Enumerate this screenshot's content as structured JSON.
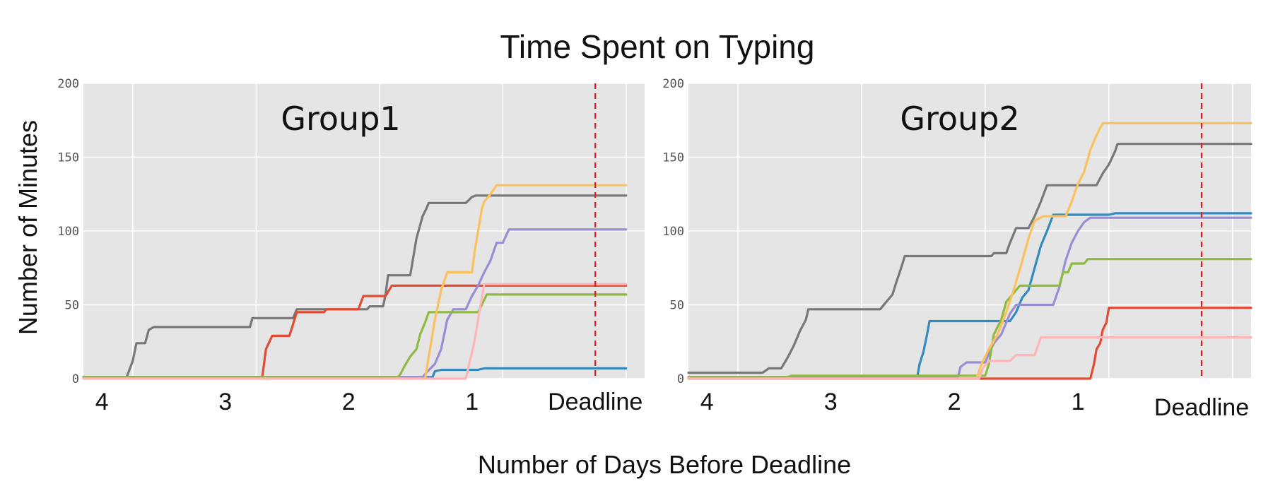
{
  "figure": {
    "title": "Time Spent on Typing",
    "xlabel": "Number of Days Before Deadline",
    "ylabel": "Number of Minutes"
  },
  "colors": {
    "panel_bg": "#e5e5e5",
    "grid": "#ffffff",
    "deadline_line": "#e31a1c",
    "gray": "#777777",
    "red": "#e24a33",
    "blue": "#348abd",
    "purple": "#988ed5",
    "green": "#8eba42",
    "yellow": "#fbc15e",
    "pink": "#ffb5b8"
  },
  "chart_data": [
    {
      "type": "line",
      "panel_label": "Group1",
      "xlabel": "Number of Days Before Deadline",
      "ylabel": "Number of Minutes",
      "x_unit": "days before deadline",
      "xlim": [
        4.15,
        -0.4
      ],
      "ylim": [
        0,
        200
      ],
      "yticks": [
        0,
        50,
        100,
        150,
        200
      ],
      "xtick_labels": [
        {
          "x": 4,
          "label": "4"
        },
        {
          "x": 3,
          "label": "3"
        },
        {
          "x": 2,
          "label": "2"
        },
        {
          "x": 1,
          "label": "1"
        },
        {
          "x": 0,
          "label": "Deadline"
        }
      ],
      "deadline_x": 0,
      "grid": true,
      "series": [
        {
          "color": "gray",
          "points": [
            [
              4.15,
              1
            ],
            [
              3.8,
              1
            ],
            [
              3.75,
              12
            ],
            [
              3.72,
              24
            ],
            [
              3.65,
              24
            ],
            [
              3.62,
              33
            ],
            [
              3.58,
              35
            ],
            [
              2.8,
              35
            ],
            [
              2.78,
              41
            ],
            [
              2.45,
              41
            ],
            [
              2.42,
              47
            ],
            [
              1.85,
              47
            ],
            [
              1.83,
              49
            ],
            [
              1.72,
              49
            ],
            [
              1.7,
              57
            ],
            [
              1.68,
              70
            ],
            [
              1.5,
              70
            ],
            [
              1.45,
              95
            ],
            [
              1.4,
              110
            ],
            [
              1.37,
              115
            ],
            [
              1.35,
              119
            ],
            [
              1.05,
              119
            ],
            [
              1.0,
              123
            ],
            [
              0.97,
              124
            ],
            [
              -0.25,
              124
            ]
          ]
        },
        {
          "color": "red",
          "points": [
            [
              4.15,
              1
            ],
            [
              2.7,
              1
            ],
            [
              2.67,
              20
            ],
            [
              2.62,
              29
            ],
            [
              2.48,
              29
            ],
            [
              2.45,
              37
            ],
            [
              2.42,
              45
            ],
            [
              2.2,
              45
            ],
            [
              2.18,
              47
            ],
            [
              1.92,
              47
            ],
            [
              1.88,
              56
            ],
            [
              1.7,
              56
            ],
            [
              1.65,
              63
            ],
            [
              -0.25,
              63
            ]
          ]
        },
        {
          "color": "blue",
          "points": [
            [
              4.15,
              1
            ],
            [
              1.32,
              1
            ],
            [
              1.3,
              5
            ],
            [
              1.25,
              6
            ],
            [
              0.95,
              6
            ],
            [
              0.9,
              7
            ],
            [
              -0.25,
              7
            ]
          ]
        },
        {
          "color": "purple",
          "points": [
            [
              4.15,
              1
            ],
            [
              1.4,
              1
            ],
            [
              1.37,
              4
            ],
            [
              1.3,
              10
            ],
            [
              1.25,
              20
            ],
            [
              1.2,
              40
            ],
            [
              1.15,
              47
            ],
            [
              1.05,
              47
            ],
            [
              1.0,
              56
            ],
            [
              0.95,
              63
            ],
            [
              0.9,
              72
            ],
            [
              0.85,
              80
            ],
            [
              0.8,
              92
            ],
            [
              0.75,
              92
            ],
            [
              0.7,
              101
            ],
            [
              -0.25,
              101
            ]
          ]
        },
        {
          "color": "green",
          "points": [
            [
              4.15,
              1
            ],
            [
              1.6,
              1
            ],
            [
              1.58,
              3
            ],
            [
              1.55,
              8
            ],
            [
              1.5,
              15
            ],
            [
              1.45,
              20
            ],
            [
              1.42,
              30
            ],
            [
              1.38,
              38
            ],
            [
              1.35,
              45
            ],
            [
              0.95,
              45
            ],
            [
              0.92,
              50
            ],
            [
              0.88,
              57
            ],
            [
              -0.25,
              57
            ]
          ]
        },
        {
          "color": "yellow",
          "points": [
            [
              4.15,
              0
            ],
            [
              1.38,
              0
            ],
            [
              1.35,
              15
            ],
            [
              1.3,
              40
            ],
            [
              1.25,
              60
            ],
            [
              1.2,
              72
            ],
            [
              1.0,
              72
            ],
            [
              0.98,
              85
            ],
            [
              0.95,
              100
            ],
            [
              0.92,
              115
            ],
            [
              0.9,
              120
            ],
            [
              0.85,
              125
            ],
            [
              0.8,
              131
            ],
            [
              -0.25,
              131
            ]
          ]
        },
        {
          "color": "pink",
          "points": [
            [
              4.15,
              0
            ],
            [
              1.05,
              0
            ],
            [
              0.98,
              25
            ],
            [
              0.93,
              50
            ],
            [
              0.9,
              64
            ],
            [
              -0.25,
              64
            ]
          ]
        }
      ]
    },
    {
      "type": "line",
      "panel_label": "Group2",
      "xlabel": "Number of Days Before Deadline",
      "ylabel": "Number of Minutes",
      "x_unit": "days before deadline",
      "xlim": [
        4.15,
        -0.4
      ],
      "ylim": [
        0,
        200
      ],
      "yticks": [
        0,
        50,
        100,
        150,
        200
      ],
      "xtick_labels": [
        {
          "x": 4,
          "label": "4"
        },
        {
          "x": 3,
          "label": "3"
        },
        {
          "x": 2,
          "label": "2"
        },
        {
          "x": 1,
          "label": "1"
        },
        {
          "x": 0,
          "label": "Deadline"
        }
      ],
      "deadline_x": 0,
      "grid": true,
      "series": [
        {
          "color": "gray",
          "points": [
            [
              4.15,
              4
            ],
            [
              3.55,
              4
            ],
            [
              3.5,
              7
            ],
            [
              3.4,
              7
            ],
            [
              3.35,
              14
            ],
            [
              3.3,
              22
            ],
            [
              3.25,
              32
            ],
            [
              3.2,
              40
            ],
            [
              3.18,
              47
            ],
            [
              2.6,
              47
            ],
            [
              2.55,
              52
            ],
            [
              2.5,
              57
            ],
            [
              2.47,
              65
            ],
            [
              2.43,
              75
            ],
            [
              2.4,
              83
            ],
            [
              1.7,
              83
            ],
            [
              1.68,
              85
            ],
            [
              1.58,
              85
            ],
            [
              1.55,
              92
            ],
            [
              1.5,
              102
            ],
            [
              1.4,
              102
            ],
            [
              1.35,
              110
            ],
            [
              1.3,
              120
            ],
            [
              1.25,
              131
            ],
            [
              0.85,
              131
            ],
            [
              0.8,
              139
            ],
            [
              0.75,
              145
            ],
            [
              0.7,
              154
            ],
            [
              0.68,
              159
            ],
            [
              -0.4,
              159
            ]
          ]
        },
        {
          "color": "red",
          "points": [
            [
              4.15,
              0
            ],
            [
              0.9,
              0
            ],
            [
              0.87,
              10
            ],
            [
              0.85,
              20
            ],
            [
              0.82,
              24
            ],
            [
              0.8,
              33
            ],
            [
              0.77,
              38
            ],
            [
              0.75,
              48
            ],
            [
              -0.4,
              48
            ]
          ]
        },
        {
          "color": "blue",
          "points": [
            [
              4.15,
              1
            ],
            [
              2.3,
              1
            ],
            [
              2.28,
              10
            ],
            [
              2.25,
              18
            ],
            [
              2.22,
              30
            ],
            [
              2.2,
              39
            ],
            [
              1.55,
              39
            ],
            [
              1.5,
              45
            ],
            [
              1.45,
              55
            ],
            [
              1.4,
              60
            ],
            [
              1.35,
              75
            ],
            [
              1.3,
              90
            ],
            [
              1.25,
              100
            ],
            [
              1.2,
              111
            ],
            [
              0.75,
              111
            ],
            [
              0.7,
              112
            ],
            [
              -0.4,
              112
            ]
          ]
        },
        {
          "color": "purple",
          "points": [
            [
              4.15,
              1
            ],
            [
              1.97,
              1
            ],
            [
              1.95,
              8
            ],
            [
              1.9,
              11
            ],
            [
              1.75,
              11
            ],
            [
              1.72,
              17
            ],
            [
              1.68,
              24
            ],
            [
              1.62,
              30
            ],
            [
              1.58,
              38
            ],
            [
              1.55,
              44
            ],
            [
              1.5,
              50
            ],
            [
              1.2,
              50
            ],
            [
              1.15,
              62
            ],
            [
              1.1,
              80
            ],
            [
              1.05,
              92
            ],
            [
              1.0,
              100
            ],
            [
              0.95,
              106
            ],
            [
              0.9,
              109
            ],
            [
              -0.4,
              109
            ]
          ]
        },
        {
          "color": "green",
          "points": [
            [
              4.15,
              1
            ],
            [
              3.35,
              1
            ],
            [
              3.32,
              2
            ],
            [
              1.75,
              2
            ],
            [
              1.72,
              10
            ],
            [
              1.68,
              30
            ],
            [
              1.62,
              40
            ],
            [
              1.58,
              52
            ],
            [
              1.55,
              55
            ],
            [
              1.5,
              60
            ],
            [
              1.47,
              63
            ],
            [
              1.15,
              63
            ],
            [
              1.12,
              72
            ],
            [
              1.08,
              72
            ],
            [
              1.05,
              78
            ],
            [
              0.95,
              78
            ],
            [
              0.92,
              81
            ],
            [
              -0.4,
              81
            ]
          ]
        },
        {
          "color": "yellow",
          "points": [
            [
              4.15,
              0
            ],
            [
              1.82,
              0
            ],
            [
              1.78,
              10
            ],
            [
              1.72,
              20
            ],
            [
              1.65,
              30
            ],
            [
              1.58,
              45
            ],
            [
              1.52,
              60
            ],
            [
              1.45,
              80
            ],
            [
              1.4,
              95
            ],
            [
              1.35,
              107
            ],
            [
              1.28,
              110
            ],
            [
              1.1,
              110
            ],
            [
              1.05,
              120
            ],
            [
              1.0,
              132
            ],
            [
              0.95,
              140
            ],
            [
              0.9,
              155
            ],
            [
              0.85,
              165
            ],
            [
              0.8,
              173
            ],
            [
              -0.4,
              173
            ]
          ]
        },
        {
          "color": "pink",
          "points": [
            [
              4.15,
              0
            ],
            [
              1.8,
              0
            ],
            [
              1.77,
              7
            ],
            [
              1.72,
              12
            ],
            [
              1.55,
              12
            ],
            [
              1.5,
              16
            ],
            [
              1.35,
              16
            ],
            [
              1.3,
              28
            ],
            [
              -0.4,
              28
            ]
          ]
        }
      ]
    }
  ]
}
